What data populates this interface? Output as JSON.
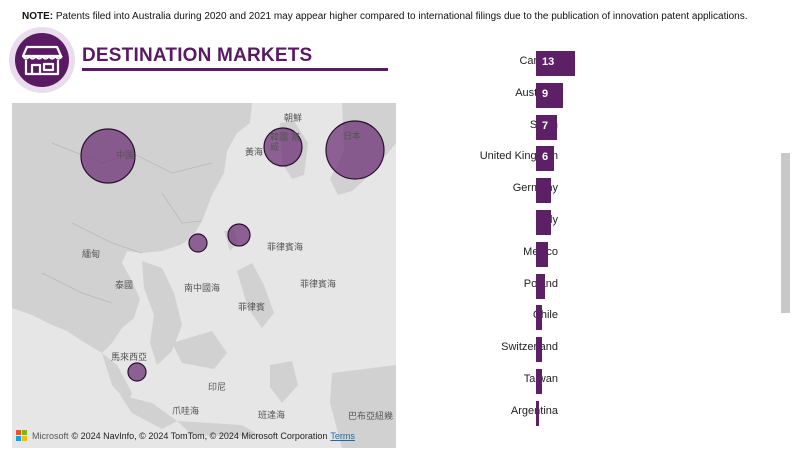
{
  "note": {
    "label": "NOTE:",
    "text": "Patents filed into Australia during 2020 and 2021 may appear higher compared to international filings due to the publication of innovation patent applications."
  },
  "header": {
    "title": "DESTINATION MARKETS",
    "logo_icon": "storefront-icon",
    "accent_color": "#5a1a63"
  },
  "map": {
    "labels": {
      "china": "中国",
      "korea": "韓國 富威",
      "japan": "日本",
      "yellow_sea": "黃海",
      "sea_of_japan": "朝鮮",
      "philippine_sea_1": "菲律賓海",
      "philippine_sea_2": "菲律賓海",
      "myanmar": "緬甸",
      "thailand": "泰國",
      "south_china_sea": "南中國海",
      "philippines": "菲律賓",
      "malaysia": "馬來西亞",
      "indonesia": "印尼",
      "java_sea": "爪哇海",
      "banda_sea": "班達海",
      "arafura": "巴布亞紐幾"
    },
    "attribution": "© 2024 NavInfo, © 2024 TomTom, © 2024 Microsoft Corporation",
    "ms_label": "Microsoft",
    "terms_label": "Terms",
    "bubble_color": "#6a2c72"
  },
  "chart_data": {
    "type": "bar",
    "orientation": "horizontal",
    "categories": [
      "Canada",
      "Australia",
      "Spain",
      "United Kingdom",
      "Germany",
      "Italy",
      "Mexico",
      "Poland",
      "Chile",
      "Switzerland",
      "Taiwan",
      "Argentina"
    ],
    "values": [
      13,
      9,
      7,
      6,
      5,
      5,
      4,
      3,
      2,
      2,
      2,
      1
    ],
    "data_labels": [
      "13",
      "9",
      "7",
      "6",
      "",
      "",
      "",
      "",
      "",
      "",
      "",
      ""
    ],
    "bar_color": "#5d1f66"
  }
}
